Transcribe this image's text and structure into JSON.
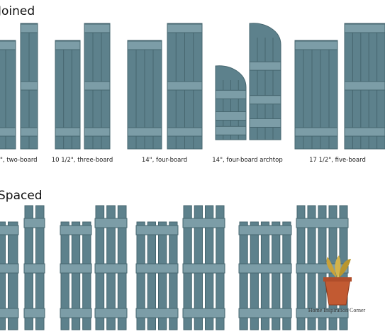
{
  "sections": [
    {
      "title": "Joined",
      "labels": [
        "\", two-board",
        "10 1/2\", three-board",
        "14\", four-board",
        "14\", four-board archtop",
        "17 1/2\", five-board"
      ]
    },
    {
      "title": "Spaced"
    }
  ],
  "watermark": "Home Inspiration Corner"
}
